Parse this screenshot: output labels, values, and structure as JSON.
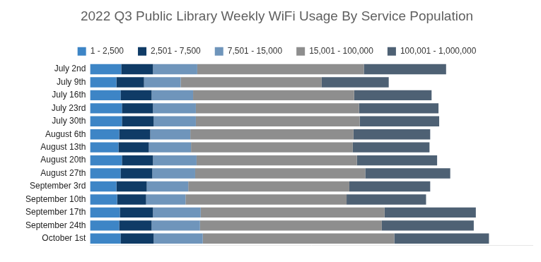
{
  "chart_data": {
    "type": "bar",
    "title": "2022 Q3 Public Library Weekly WiFi Usage By Service Population",
    "orientation": "horizontal",
    "stacked": true,
    "legend": "top",
    "grid": false,
    "tick_labels": "y",
    "xlim": [
      0,
      640
    ],
    "categories": [
      "July 2nd",
      "July 9th",
      "July 16th",
      "July 23rd",
      "July 30th",
      "August 6th",
      "August 13th",
      "August 20th",
      "August 27th",
      "September 3rd",
      "September 10th",
      "September 17th",
      "September 24th",
      "October 1st"
    ],
    "series": [
      {
        "name": "1 - 2,500",
        "color": "#3d85c6",
        "values": [
          45,
          38,
          44,
          46,
          46,
          42,
          41,
          46,
          44,
          38,
          39,
          43,
          42,
          44
        ]
      },
      {
        "name": "2,501 - 7,500",
        "color": "#0f3b66",
        "values": [
          46,
          40,
          45,
          45,
          46,
          45,
          44,
          45,
          46,
          44,
          42,
          48,
          47,
          48
        ]
      },
      {
        "name": "7,501 - 15,000",
        "color": "#6f95bb",
        "values": [
          64,
          53,
          60,
          62,
          61,
          58,
          61,
          63,
          62,
          60,
          57,
          69,
          70,
          71
        ]
      },
      {
        "name": "15,001 - 100,000",
        "color": "#8e8e8e",
        "values": [
          241,
          204,
          233,
          236,
          237,
          236,
          234,
          232,
          246,
          233,
          233,
          266,
          263,
          277
        ]
      },
      {
        "name": "100,001 - 1,000,000",
        "color": "#4e6174",
        "values": [
          119,
          97,
          112,
          115,
          115,
          111,
          111,
          116,
          123,
          117,
          115,
          132,
          133,
          137
        ]
      }
    ]
  }
}
